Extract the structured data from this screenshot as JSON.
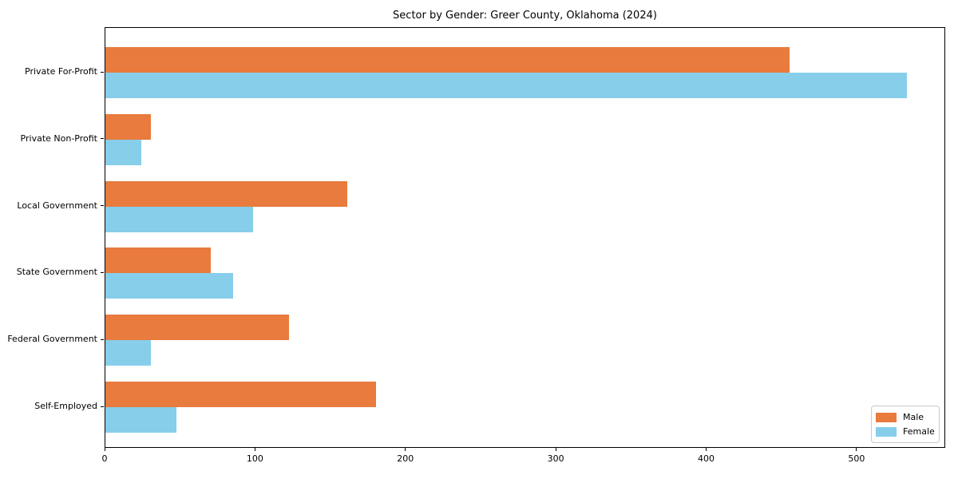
{
  "title": "Sector by Gender: Greer County, Oklahoma (2024)",
  "chart_data": {
    "type": "bar",
    "orientation": "horizontal",
    "title": "Sector by Gender: Greer County, Oklahoma (2024)",
    "categories": [
      "Private For-Profit",
      "Private Non-Profit",
      "Local Government",
      "State Government",
      "Federal Government",
      "Self-Employed"
    ],
    "series": [
      {
        "name": "Male",
        "color": "#E87B3D",
        "values": [
          455,
          30,
          161,
          70,
          122,
          180
        ]
      },
      {
        "name": "Female",
        "color": "#87CEEB",
        "values": [
          533,
          24,
          98,
          85,
          30,
          47
        ]
      }
    ],
    "xlabel": "",
    "ylabel": "",
    "xlim": [
      0,
      559
    ],
    "xticks": [
      0,
      100,
      200,
      300,
      400,
      500
    ],
    "grid": false,
    "legend_position": "lower right",
    "background": "#ffffff",
    "axis_color": "#000000"
  }
}
